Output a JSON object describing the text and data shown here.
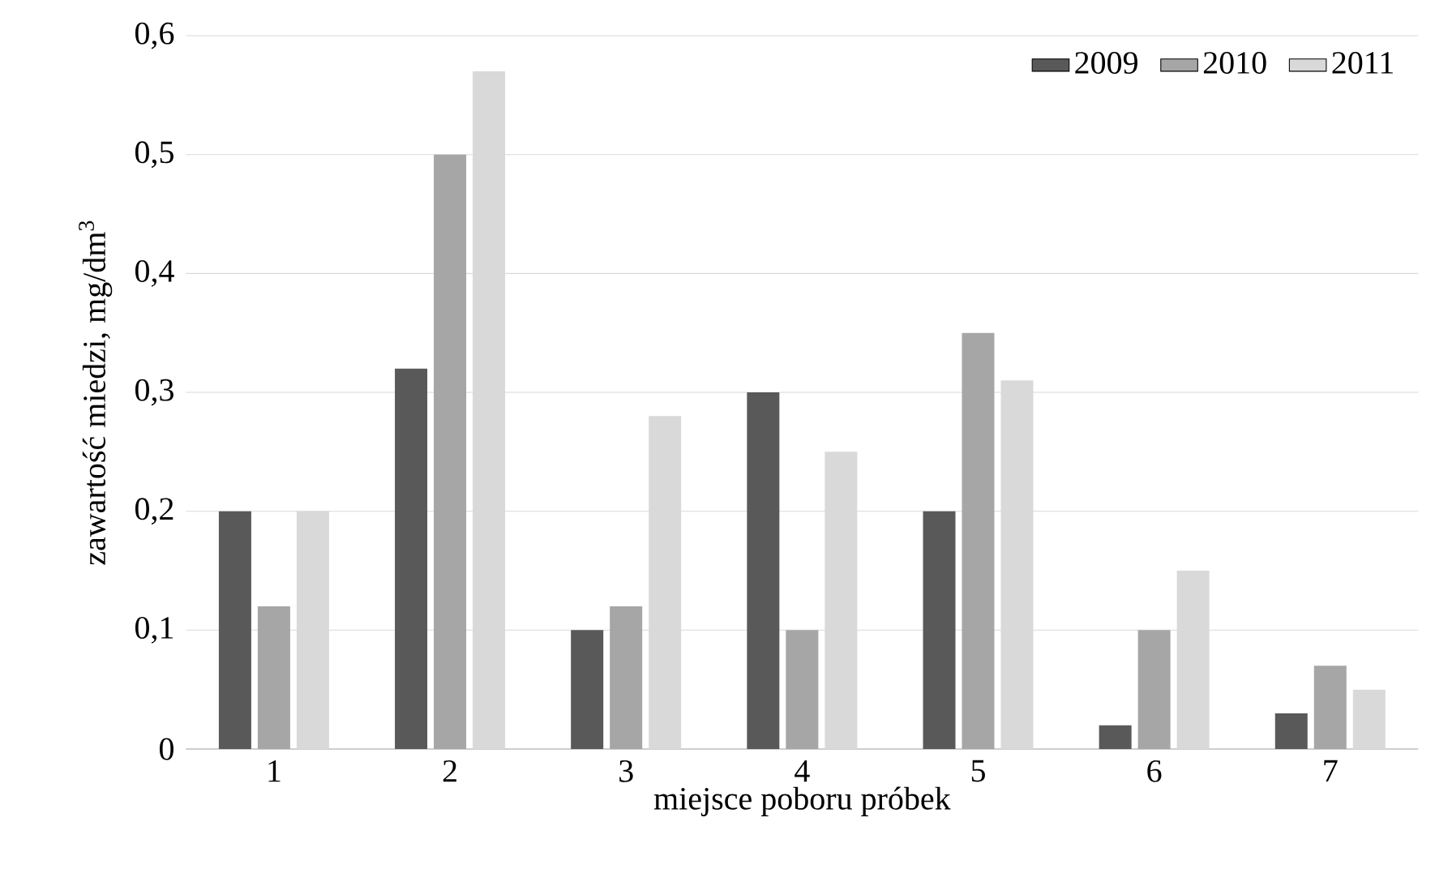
{
  "chart_data": {
    "type": "bar",
    "xlabel": "miejsce poboru próbek",
    "ylabel": "zawartość miedzi, mg/dm$^{3}$",
    "categories": [
      "1",
      "2",
      "3",
      "4",
      "5",
      "6",
      "7"
    ],
    "series": [
      {
        "name": "2009",
        "color": "#595959",
        "values": [
          0.2,
          0.32,
          0.1,
          0.3,
          0.2,
          0.02,
          0.03
        ]
      },
      {
        "name": "2010",
        "color": "#a6a6a6",
        "values": [
          0.12,
          0.5,
          0.12,
          0.1,
          0.35,
          0.1,
          0.07
        ]
      },
      {
        "name": "2011",
        "color": "#d9d9d9",
        "values": [
          0.2,
          0.57,
          0.28,
          0.25,
          0.31,
          0.15,
          0.05
        ]
      }
    ],
    "ylim": [
      0,
      0.6
    ],
    "yticks": [
      0,
      {
        "value": 0.1,
        "label": "0,1"
      },
      {
        "value": 0.2,
        "label": "0,2"
      },
      {
        "value": 0.3,
        "label": "0,3"
      },
      {
        "value": 0.4,
        "label": "0,4"
      },
      {
        "value": 0.5,
        "label": "0,5"
      },
      {
        "value": 0.6,
        "label": "0,6"
      }
    ],
    "grid": "y",
    "legend": "top right"
  }
}
